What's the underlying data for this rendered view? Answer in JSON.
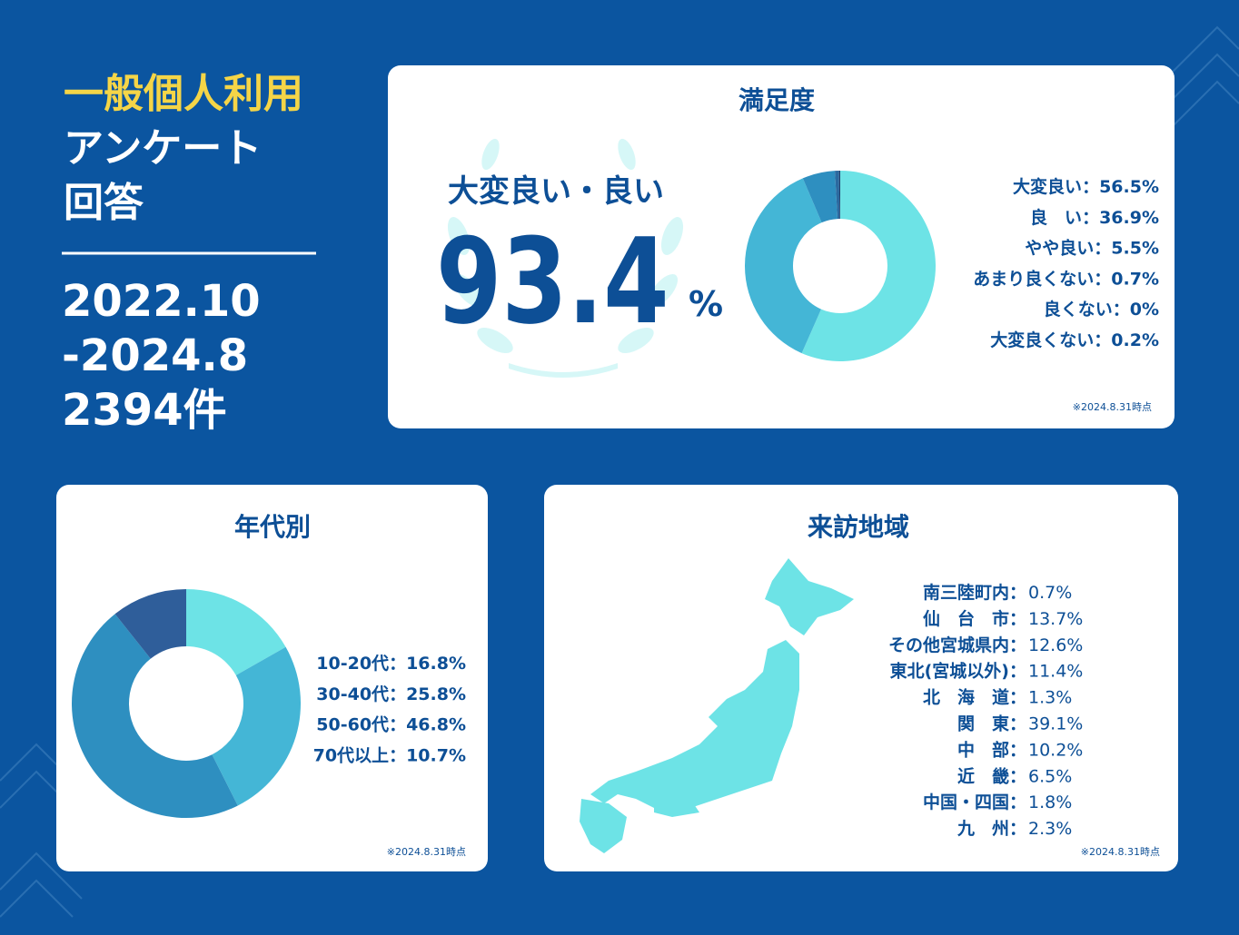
{
  "header": {
    "title_lines": [
      "一般個人利用",
      "アンケート",
      "回答"
    ],
    "period_lines": [
      "2022.10",
      "-2024.8"
    ],
    "count": "2394件"
  },
  "chart_data": [
    {
      "type": "donut",
      "title": "満足度",
      "highlight_label": "大変良い・良い",
      "highlight_value": "93.4",
      "highlight_unit": "%",
      "categories": [
        "大変良い",
        "良　い",
        "やや良い",
        "あまり良くない",
        "良くない",
        "大変良くない"
      ],
      "values": [
        56.5,
        36.9,
        5.5,
        0.7,
        0,
        0.2
      ],
      "value_labels": [
        "56.5%",
        "36.9%",
        "5.5%",
        "0.7%",
        "0%",
        "0.2%"
      ],
      "colors": [
        "#6de3e6",
        "#44b6d6",
        "#2e8fc0",
        "#2b6aa0",
        "#24558a",
        "#1e3f6e"
      ],
      "separator": "：",
      "note": "※2024.8.31時点"
    },
    {
      "type": "donut",
      "title": "年代別",
      "categories": [
        "10-20代",
        "30-40代",
        "50-60代",
        "70代以上"
      ],
      "values": [
        16.8,
        25.8,
        46.8,
        10.7
      ],
      "value_labels": [
        "16.8%",
        "25.8%",
        "46.8%",
        "10.7%"
      ],
      "colors": [
        "#6de3e6",
        "#44b6d6",
        "#2e8fc0",
        "#2f5e9a"
      ],
      "separator": "：",
      "note": "※2024.8.31時点"
    },
    {
      "type": "map",
      "title": "来訪地域",
      "categories": [
        "南三陸町内",
        "仙　台　市",
        "その他宮城県内",
        "東北(宮城以外)",
        "北　海　道",
        "関　東",
        "中　部",
        "近　畿",
        "中国・四国",
        "九　州"
      ],
      "values": [
        0.7,
        13.7,
        12.6,
        11.4,
        1.3,
        39.1,
        10.2,
        6.5,
        1.8,
        2.3
      ],
      "value_labels": [
        "0.7%",
        "13.7%",
        "12.6%",
        "11.4%",
        "1.3%",
        "39.1%",
        "10.2%",
        "6.5%",
        "1.8%",
        "2.3%"
      ],
      "color": "#6de3e6",
      "separator": "：",
      "note": "※2024.8.31時点"
    }
  ]
}
